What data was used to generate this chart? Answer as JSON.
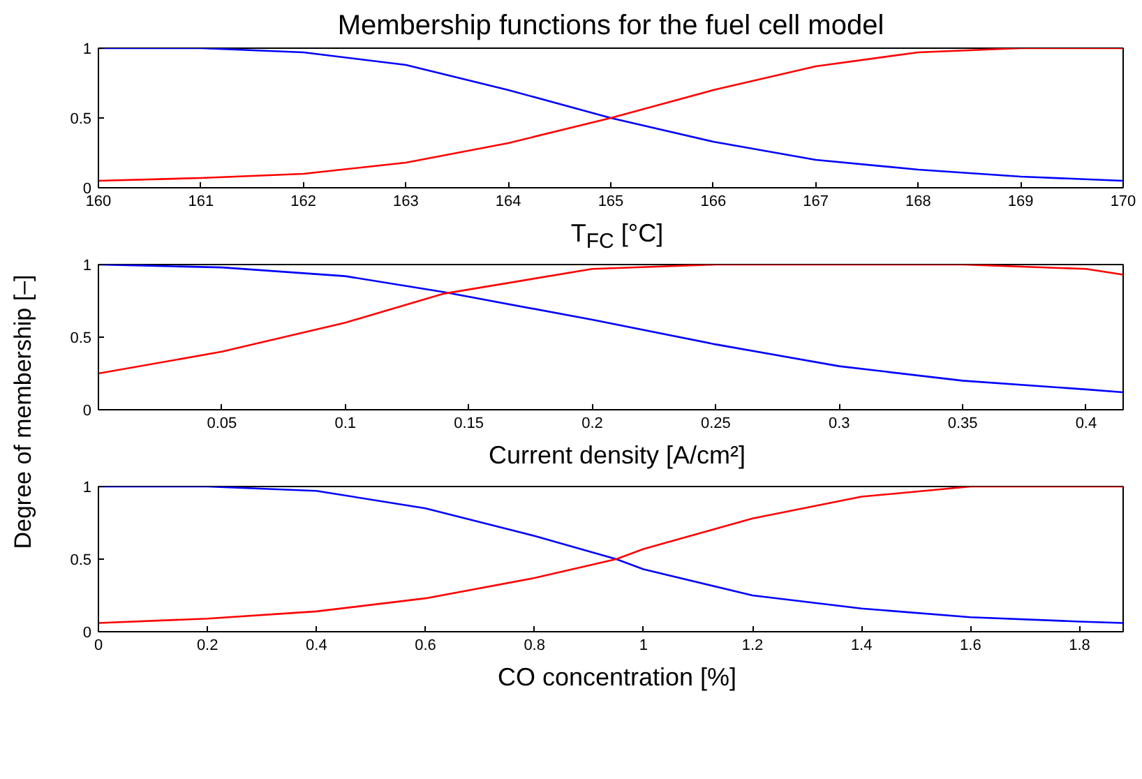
{
  "chart_data": [
    {
      "type": "line",
      "title": "Membership functions for the fuel cell model",
      "xlabel": "T$_{FC}$ [°C]",
      "grid": false,
      "xlim": [
        160,
        170
      ],
      "ylim": [
        0,
        1
      ],
      "xticks": [
        160,
        161,
        162,
        163,
        164,
        165,
        166,
        167,
        168,
        169,
        170
      ],
      "yticks": [
        0,
        0.5,
        1
      ],
      "x": [
        160,
        161,
        162,
        163,
        164,
        165,
        166,
        167,
        168,
        169,
        170
      ],
      "series": [
        {
          "color": "#0000ff",
          "values": [
            1,
            1,
            0.97,
            0.88,
            0.7,
            0.5,
            0.33,
            0.2,
            0.13,
            0.08,
            0.05
          ]
        },
        {
          "color": "#ff0000",
          "values": [
            0.05,
            0.07,
            0.1,
            0.18,
            0.32,
            0.5,
            0.7,
            0.87,
            0.97,
            1,
            1
          ]
        }
      ]
    },
    {
      "type": "line",
      "xlabel": "Current density [A/cm²]",
      "ylabel": "Degree of membership [–]",
      "grid": false,
      "xlim": [
        0,
        0.415
      ],
      "ylim": [
        0,
        1
      ],
      "xticks": [
        0.05,
        0.1,
        0.15,
        0.2,
        0.25,
        0.3,
        0.35,
        0.4
      ],
      "yticks": [
        0,
        0.5,
        1
      ],
      "x": [
        0,
        0.05,
        0.1,
        0.14,
        0.2,
        0.25,
        0.3,
        0.35,
        0.4,
        0.415
      ],
      "series": [
        {
          "color": "#0000ff",
          "values": [
            1,
            0.98,
            0.92,
            0.81,
            0.62,
            0.45,
            0.3,
            0.2,
            0.14,
            0.12
          ]
        },
        {
          "color": "#ff0000",
          "values": [
            0.25,
            0.4,
            0.6,
            0.8,
            0.97,
            1,
            1,
            1,
            0.97,
            0.93
          ]
        }
      ]
    },
    {
      "type": "line",
      "xlabel": "CO concentration [%]",
      "grid": false,
      "xlim": [
        0,
        1.88
      ],
      "ylim": [
        0,
        1
      ],
      "xticks": [
        0,
        0.2,
        0.4,
        0.6,
        0.8,
        1,
        1.2,
        1.4,
        1.6,
        1.8
      ],
      "yticks": [
        0,
        0.5,
        1
      ],
      "x": [
        0,
        0.2,
        0.4,
        0.6,
        0.8,
        0.95,
        1,
        1.2,
        1.4,
        1.6,
        1.8,
        1.88
      ],
      "series": [
        {
          "color": "#0000ff",
          "values": [
            1,
            1,
            0.97,
            0.85,
            0.66,
            0.5,
            0.43,
            0.25,
            0.16,
            0.1,
            0.07,
            0.06
          ]
        },
        {
          "color": "#ff0000",
          "values": [
            0.06,
            0.09,
            0.14,
            0.23,
            0.37,
            0.5,
            0.57,
            0.78,
            0.93,
            1,
            1,
            1
          ]
        }
      ]
    }
  ]
}
